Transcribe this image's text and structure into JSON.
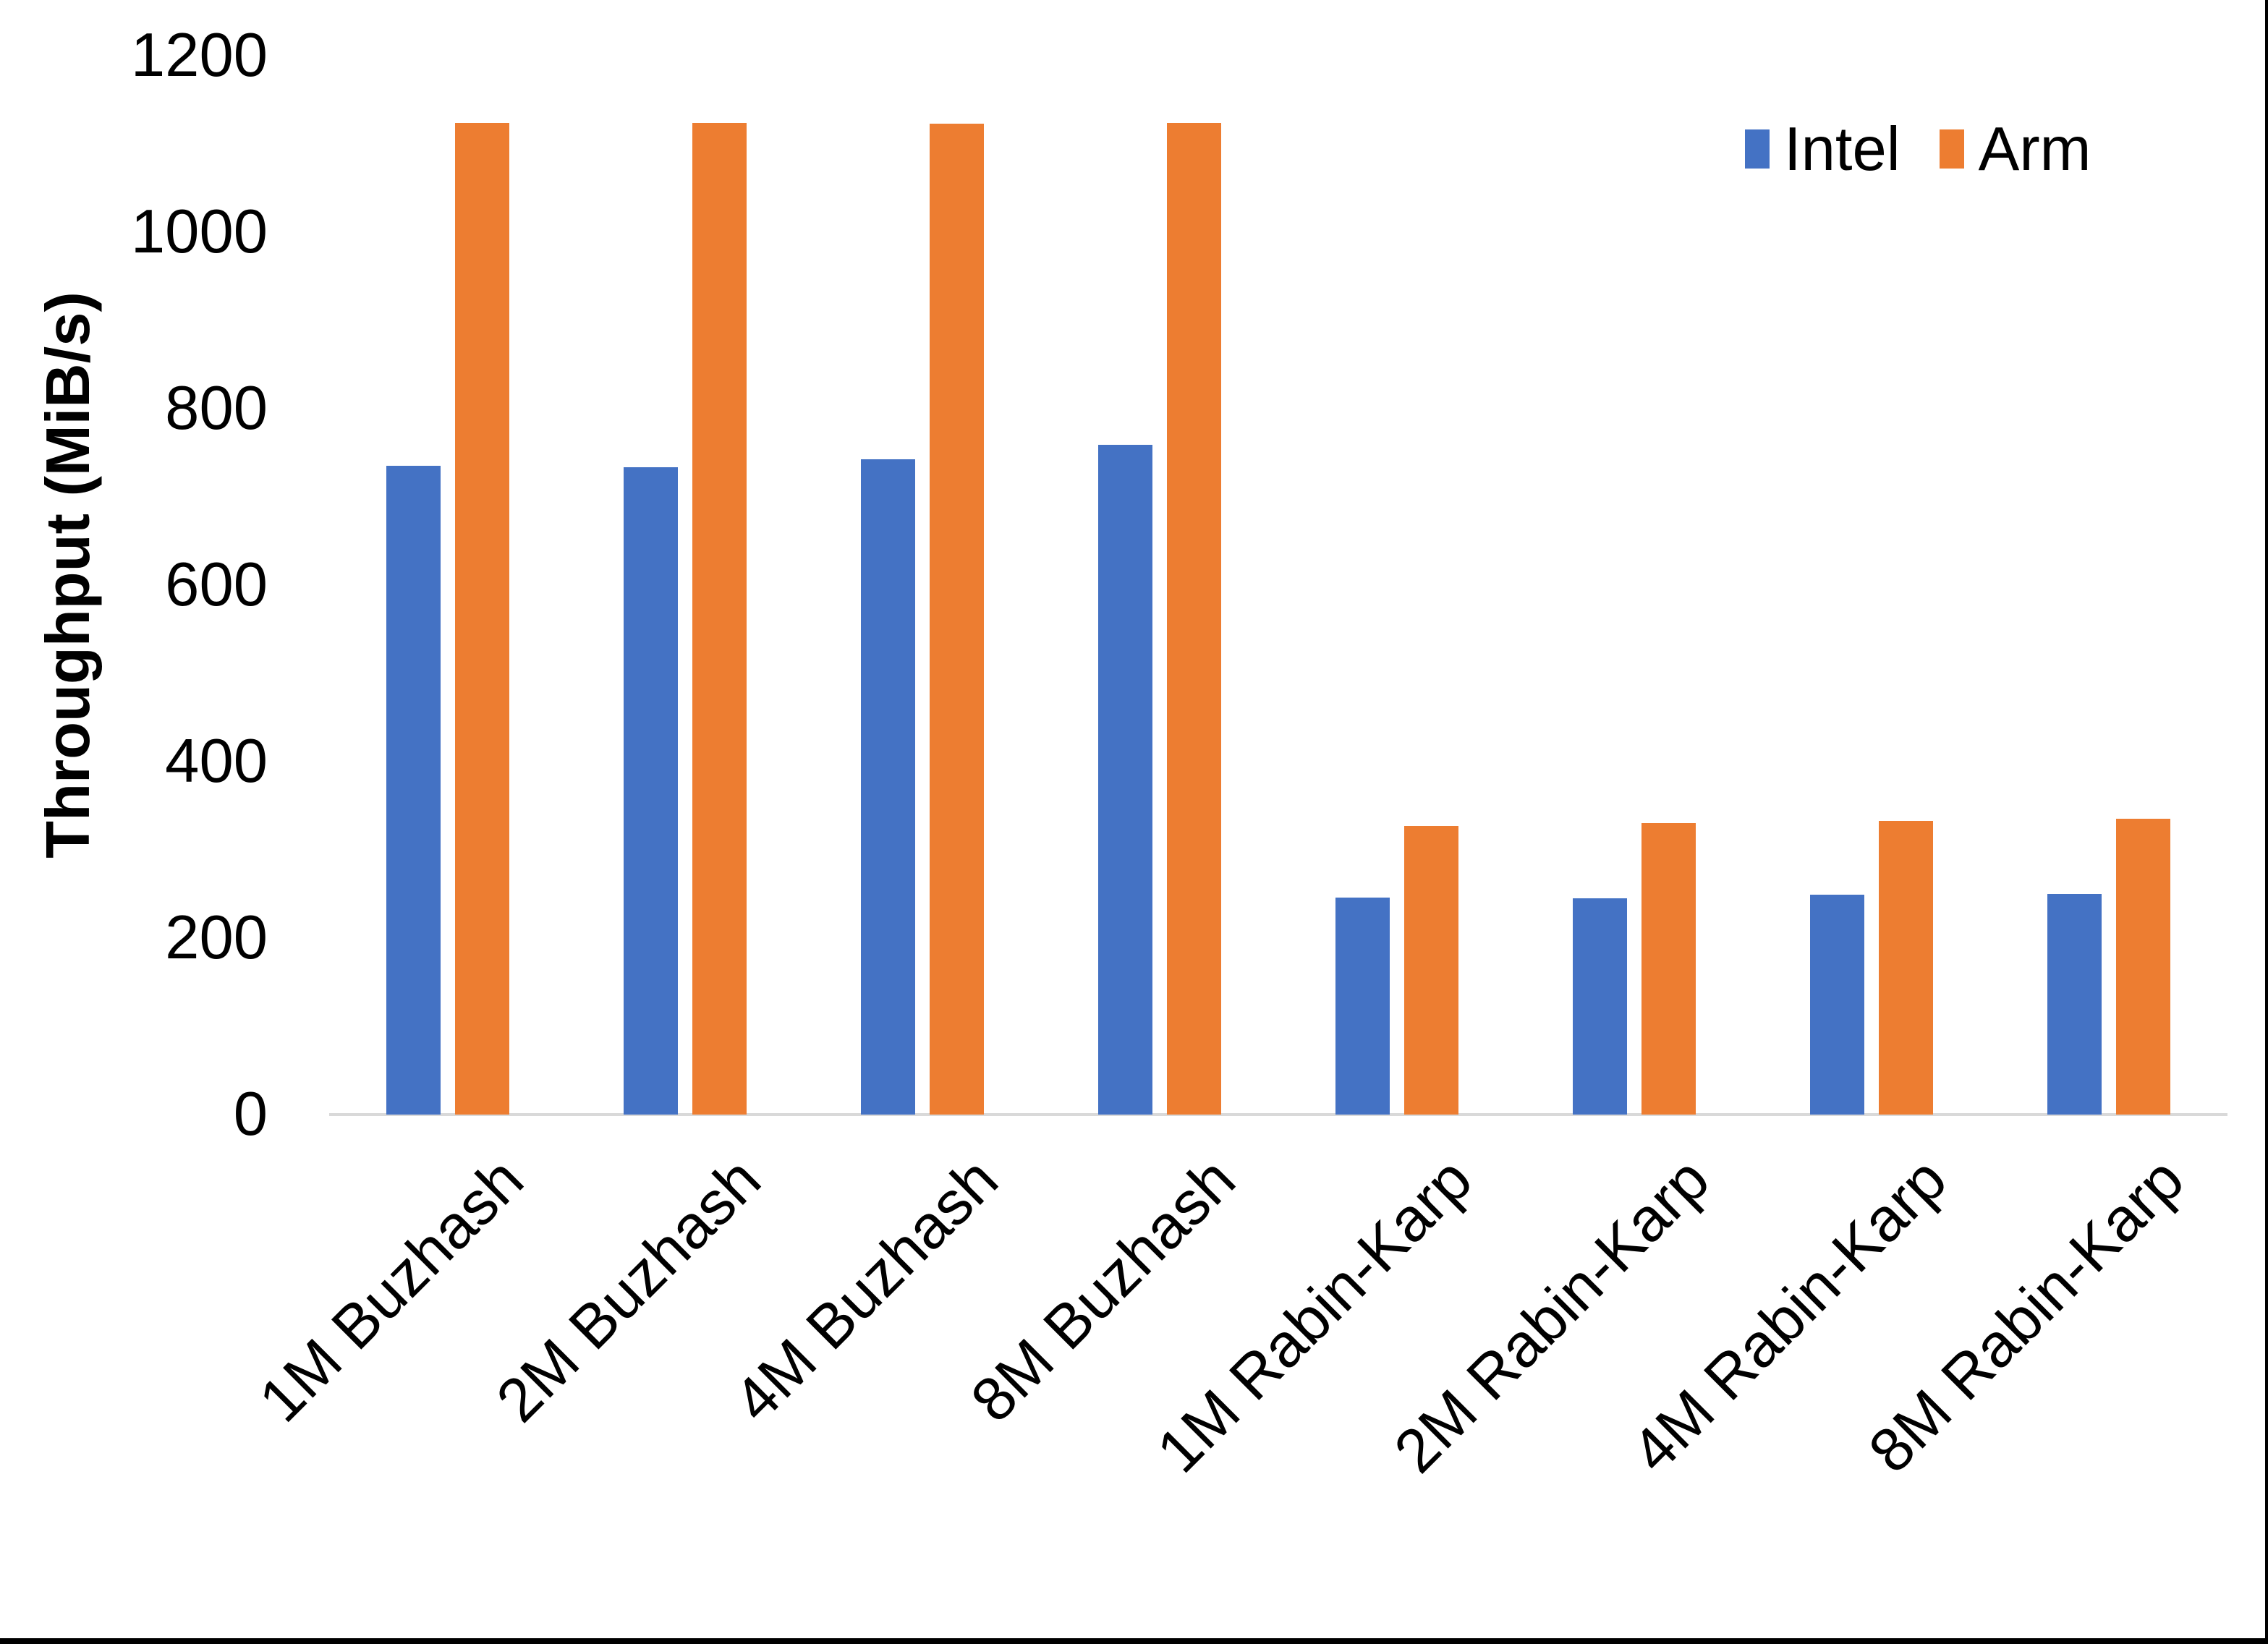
{
  "figure": {
    "background": "#FFFFFF",
    "edge_border_color": "#000000"
  },
  "axis": {
    "baseline_color": "#D9D9D9",
    "text_color": "#000000"
  },
  "legend": {
    "position": "top-right",
    "items": [
      {
        "label": "Intel",
        "color": "#4472C4"
      },
      {
        "label": "Arm",
        "color": "#ED7D31"
      }
    ]
  },
  "chart_data": {
    "type": "bar",
    "title": "",
    "xlabel": "",
    "ylabel": "Throughput (MiB/s)",
    "ylim": [
      0,
      1200
    ],
    "yticks": [
      0,
      200,
      400,
      600,
      800,
      1000,
      1200
    ],
    "grid": false,
    "legend_position": "top-right",
    "categories": [
      "1M Buzhash",
      "2M Buzhash",
      "4M Buzhash",
      "8M Buzhash",
      "1M Rabin-Karp",
      "2M Rabin-Karp",
      "4M Rabin-Karp",
      "8M Rabin-Karp"
    ],
    "series": [
      {
        "name": "Intel",
        "color": "#4472C4",
        "values": [
          735,
          734,
          743,
          759,
          246,
          245,
          249,
          250
        ]
      },
      {
        "name": "Arm",
        "color": "#ED7D31",
        "values": [
          1124,
          1124,
          1123,
          1124,
          327,
          330,
          333,
          335
        ]
      }
    ]
  }
}
